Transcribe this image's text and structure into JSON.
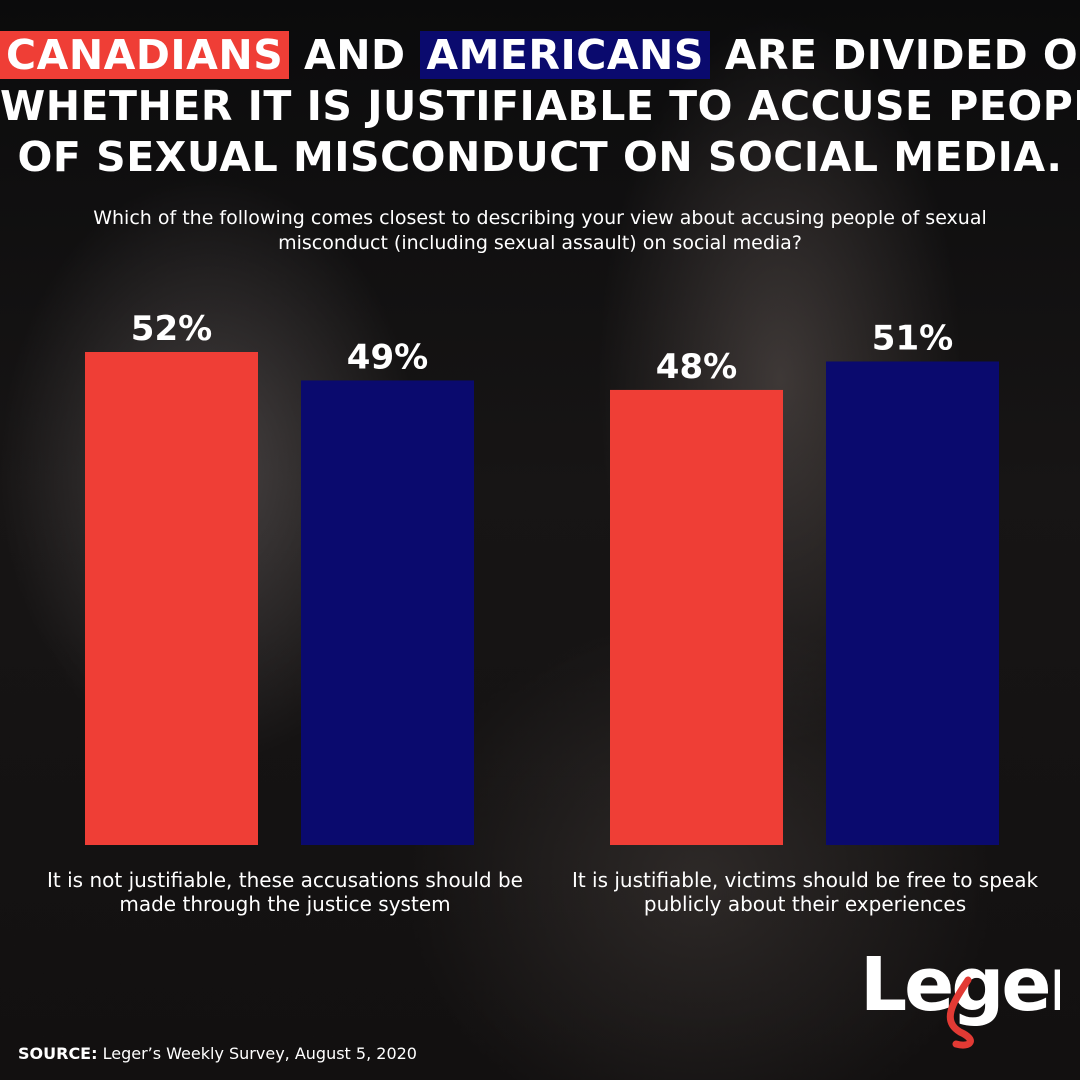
{
  "headline": {
    "word_canadians": "CANADIANS",
    "and": "AND",
    "word_americans": "AMERICANS",
    "line1_rest": "ARE DIVIDED ON",
    "line2": "WHETHER IT IS JUSTIFIABLE TO ACCUSE PEOPLE",
    "line3": "OF SEXUAL MISCONDUCT ON SOCIAL MEDIA."
  },
  "colors": {
    "canadians": "#ef3e36",
    "americans": "#0a0a6e"
  },
  "chart_data": {
    "type": "bar",
    "title": "",
    "subtitle": "Which of the following comes closest to describing your view about accusing people of sexual misconduct (including sexual assault) on social media?",
    "categories": [
      "It is not justifiable, these accusations should be made through the justice system",
      "It is justifiable, victims should be free to speak publicly about their experiences"
    ],
    "series": [
      {
        "name": "CANADIANS",
        "color": "#ef3e36",
        "values": [
          52,
          48
        ]
      },
      {
        "name": "AMERICANS",
        "color": "#0a0a6e",
        "values": [
          49,
          51
        ]
      }
    ],
    "value_labels": [
      [
        "52%",
        "48%"
      ],
      [
        "49%",
        "51%"
      ]
    ],
    "unit": "%",
    "grid": false,
    "legend": "none"
  },
  "source": {
    "prefix": "SOURCE:",
    "text": "Leger’s Weekly Survey, August 5, 2020"
  },
  "logo": {
    "text": "Leger"
  }
}
